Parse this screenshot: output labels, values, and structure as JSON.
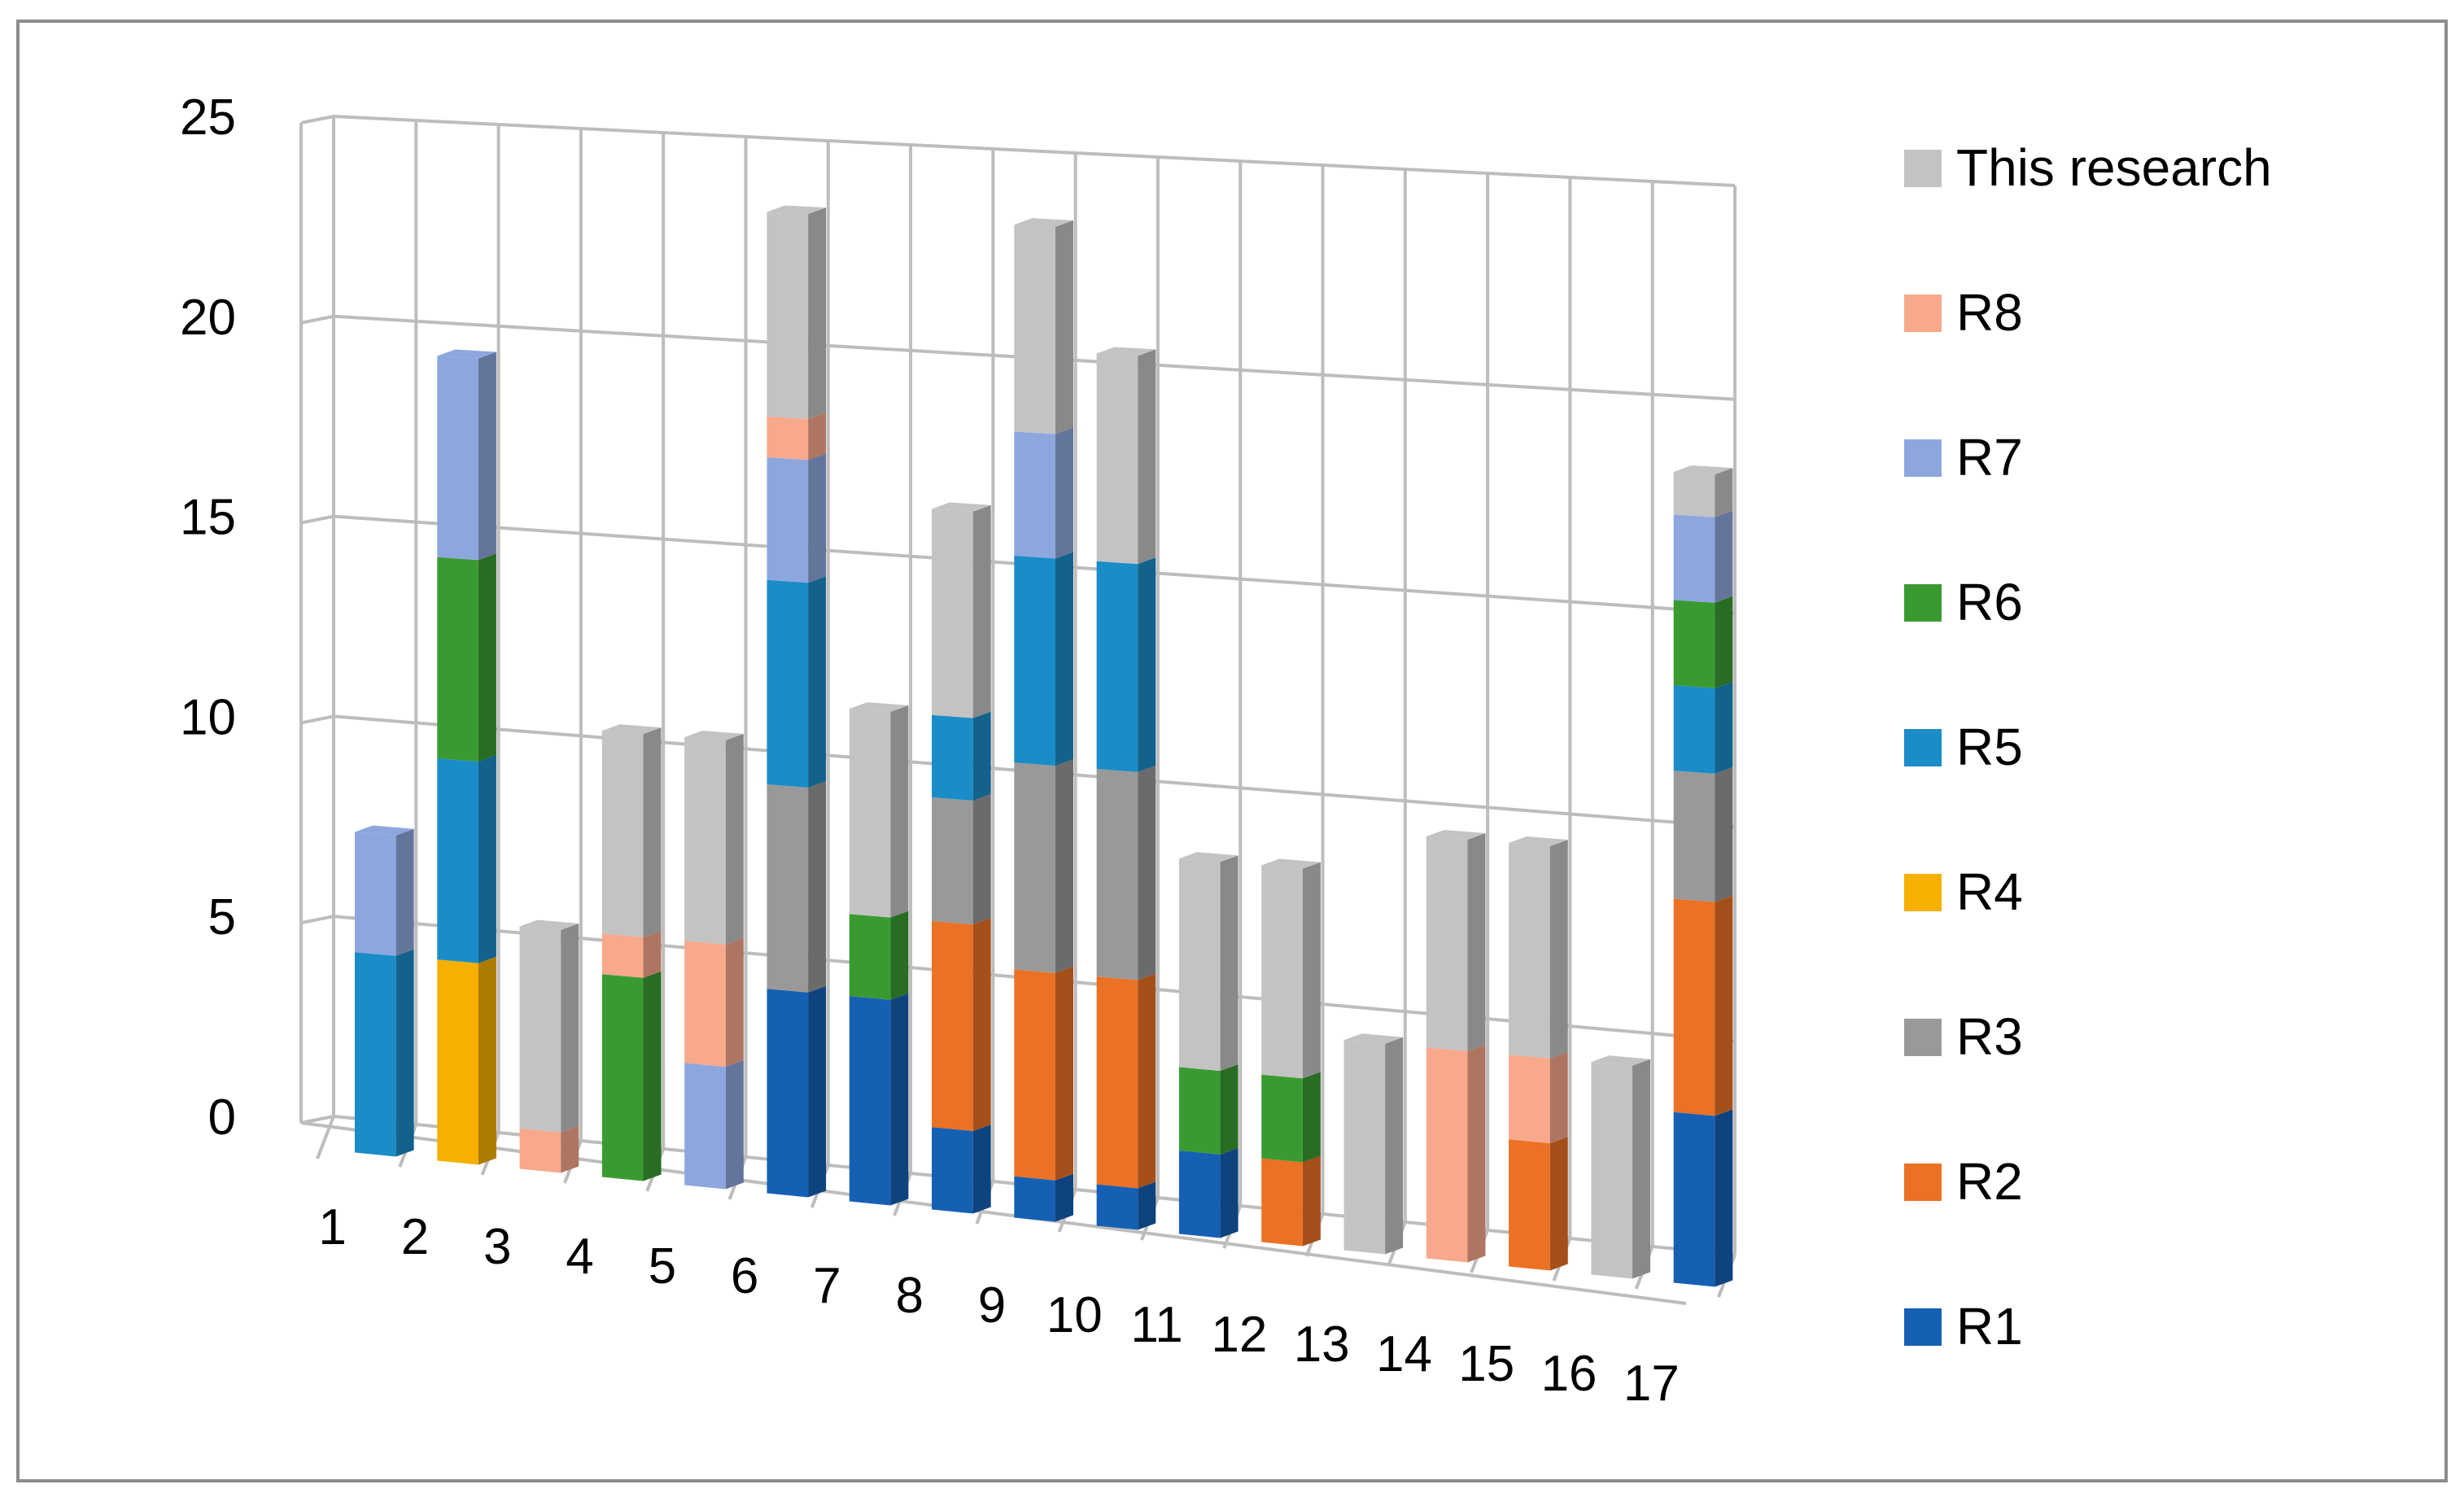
{
  "chart_data": {
    "type": "bar",
    "stacked": true,
    "view": "3d",
    "grid": true,
    "legend_position": "right",
    "title": "",
    "xlabel": "",
    "ylabel": "",
    "ylim": [
      0,
      25
    ],
    "y_ticks": [
      "0",
      "5",
      "10",
      "15",
      "20",
      "25"
    ],
    "categories": [
      "1",
      "2",
      "3",
      "4",
      "5",
      "6",
      "7",
      "8",
      "9",
      "10",
      "11",
      "12",
      "13",
      "14",
      "15",
      "16",
      "17"
    ],
    "series": [
      {
        "name": "R1",
        "color": "#1660B4",
        "values": [
          0,
          0,
          0,
          0,
          0,
          5,
          5,
          2,
          1,
          1,
          2,
          0,
          0,
          0,
          0,
          0,
          4
        ]
      },
      {
        "name": "R2",
        "color": "#EB7125",
        "values": [
          0,
          0,
          0,
          0,
          0,
          0,
          0,
          5,
          5,
          5,
          0,
          2,
          0,
          0,
          3,
          0,
          5
        ]
      },
      {
        "name": "R3",
        "color": "#999999",
        "values": [
          0,
          0,
          0,
          0,
          0,
          5,
          0,
          3,
          5,
          5,
          0,
          0,
          0,
          0,
          0,
          0,
          3
        ]
      },
      {
        "name": "R4",
        "color": "#F5B000",
        "values": [
          0,
          5,
          0,
          0,
          0,
          0,
          0,
          0,
          0,
          0,
          0,
          0,
          0,
          0,
          0,
          0,
          0
        ]
      },
      {
        "name": "R5",
        "color": "#1A8CC8",
        "values": [
          5,
          5,
          0,
          0,
          0,
          5,
          0,
          2,
          5,
          5,
          0,
          0,
          0,
          0,
          0,
          0,
          2
        ]
      },
      {
        "name": "R6",
        "color": "#3A9A32",
        "values": [
          0,
          5,
          0,
          5,
          0,
          0,
          2,
          0,
          0,
          0,
          2,
          2,
          0,
          0,
          0,
          0,
          2
        ]
      },
      {
        "name": "R7",
        "color": "#8DA7DE",
        "values": [
          3,
          5,
          0,
          0,
          3,
          3,
          0,
          0,
          3,
          0,
          0,
          0,
          0,
          0,
          0,
          0,
          2
        ]
      },
      {
        "name": "R8",
        "color": "#F8A98C",
        "values": [
          0,
          0,
          1,
          1,
          3,
          1,
          0,
          0,
          0,
          0,
          0,
          0,
          0,
          5,
          2,
          0,
          0
        ]
      },
      {
        "name": "This research",
        "color": "#C3C3C3",
        "values": [
          0,
          0,
          5,
          5,
          5,
          5,
          5,
          5,
          5,
          5,
          5,
          5,
          5,
          5,
          5,
          5,
          1
        ]
      }
    ]
  }
}
